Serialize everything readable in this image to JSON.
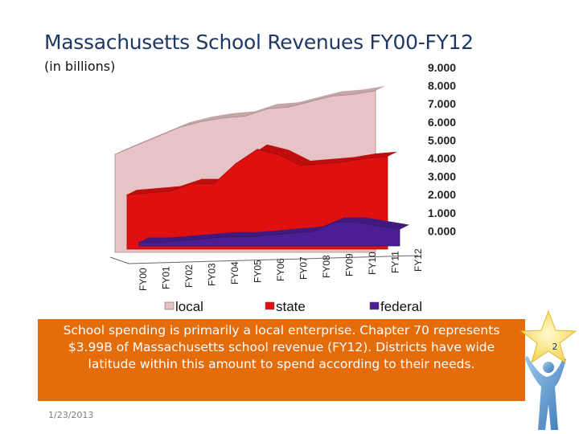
{
  "slide": {
    "title": "Massachusetts School Revenues FY00-FY12",
    "subtitle": "(in billions)",
    "callout": "School spending is primarily a local enterprise.  Chapter 70 represents $3.99B of Massachusetts school revenue (FY12).  Districts have wide latitude within this amount to spend according to their needs.",
    "date": "1/23/2013",
    "slide_number": "2"
  },
  "colors": {
    "local": "#e8c3c6",
    "state": "#e01010",
    "federal": "#4b1f93",
    "callout_bg": "#e46c0a",
    "title": "#1f3864"
  },
  "icons": [
    "star-icon",
    "person-icon"
  ],
  "chart_data": {
    "type": "area",
    "style": "3d-stacked-depth",
    "categories": [
      "FY00",
      "FY01",
      "FY02",
      "FY03",
      "FY04",
      "FY05",
      "FY06",
      "FY07",
      "FY08",
      "FY09",
      "FY10",
      "FY11",
      "FY12"
    ],
    "tick_labels": [
      "FY00",
      "FY01",
      "FY02",
      "FY03",
      "FY04",
      "FY05",
      "FY06",
      "FY07",
      "FY08",
      "FY09",
      "FY10",
      "FY11",
      "FY12"
    ],
    "series": [
      {
        "name": "local",
        "values": [
          5.4,
          5.9,
          6.4,
          6.9,
          7.2,
          7.4,
          7.5,
          7.9,
          8.0,
          8.3,
          8.6,
          8.7,
          8.9
        ]
      },
      {
        "name": "state",
        "values": [
          3.0,
          3.1,
          3.2,
          3.6,
          3.6,
          4.7,
          5.5,
          5.2,
          4.6,
          4.7,
          4.8,
          5.0,
          5.1
        ]
      },
      {
        "name": "federal",
        "values": [
          0.2,
          0.2,
          0.3,
          0.4,
          0.5,
          0.5,
          0.6,
          0.7,
          0.8,
          1.3,
          1.3,
          1.1,
          0.9
        ]
      }
    ],
    "y_ticks": [
      "9.000",
      "8.000",
      "7.000",
      "6.000",
      "5.000",
      "4.000",
      "3.000",
      "2.000",
      "1.000",
      "0.000"
    ],
    "ylim": [
      0,
      9
    ],
    "legend": [
      "local",
      "state",
      "federal"
    ],
    "legend_position": "bottom"
  }
}
